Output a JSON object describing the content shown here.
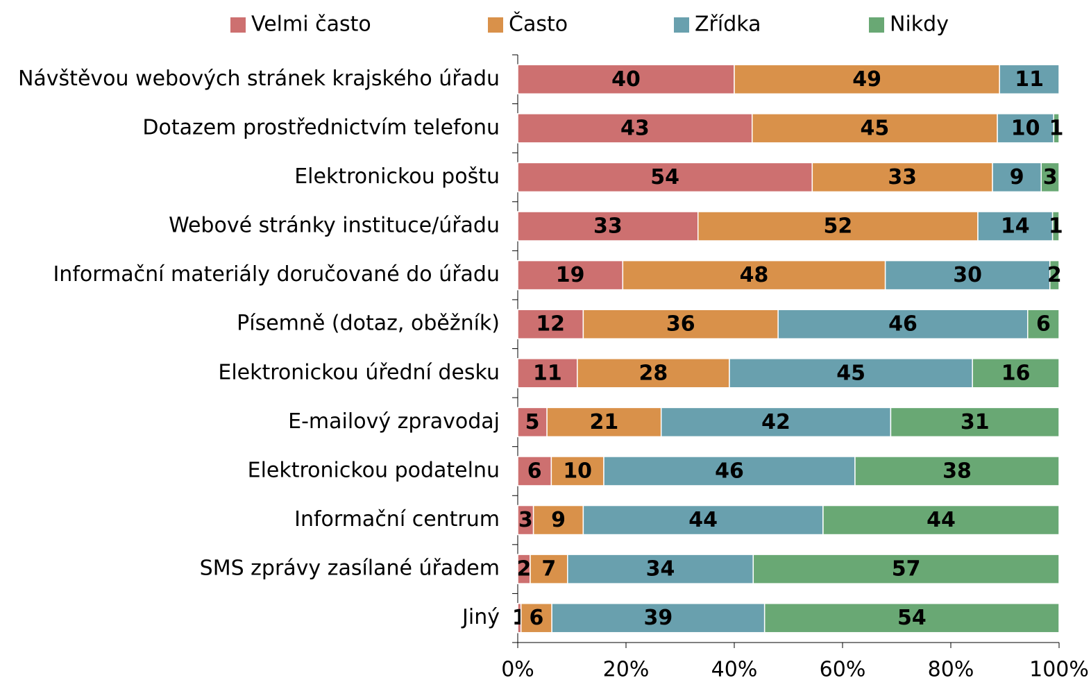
{
  "chart_data": {
    "type": "stacked_barh",
    "categories": [
      "Návštěvou webových stránek krajského úřadu",
      "Dotazem prostřednictvím telefonu",
      "Elektronickou poštu",
      "Webové stránky instituce/úřadu",
      "Informační materiály doručované do úřadu",
      "Písemně (dotaz, oběžník)",
      "Elektronickou úřední desku",
      "E-mailový zpravodaj",
      "Elektronickou podatelnu",
      "Informační centrum",
      "SMS zprávy zasílané úřadem",
      "Jiný"
    ],
    "series": [
      {
        "name": "Velmi často",
        "color": "#cd7070",
        "values": [
          40,
          43.3,
          54.4,
          33.3,
          19.4,
          12.1,
          11.0,
          5.4,
          6.2,
          2.9,
          2.3,
          0.6
        ],
        "value_labels": [
          "40",
          "43",
          "54",
          "33",
          "19",
          "12",
          "11",
          "5",
          "6",
          "3",
          "2",
          "1"
        ]
      },
      {
        "name": "Často",
        "color": "#d9914a",
        "values": [
          49,
          45.3,
          33.3,
          51.7,
          48.5,
          36.0,
          28.1,
          21.1,
          9.7,
          9.2,
          6.9,
          5.7
        ],
        "value_labels": [
          "49",
          "45",
          "33",
          "52",
          "48",
          "36",
          "28",
          "21",
          "10",
          "9",
          "7",
          "6"
        ]
      },
      {
        "name": "Zřídka",
        "color": "#69a0ae",
        "values": [
          11,
          10.4,
          9.0,
          13.8,
          30.4,
          46.1,
          44.9,
          42.4,
          46.4,
          44.3,
          34.3,
          39.3
        ],
        "value_labels": [
          "11",
          "10",
          "9",
          "14",
          "30",
          "46",
          "45",
          "42",
          "46",
          "44",
          "34",
          "39"
        ]
      },
      {
        "name": "Nikdy",
        "color": "#69a874",
        "values": [
          null,
          1.0,
          3.3,
          1.2,
          1.7,
          5.8,
          16.0,
          31.1,
          37.7,
          43.6,
          56.5,
          54.4
        ],
        "value_labels": [
          null,
          "1",
          "3",
          "1",
          "2",
          "6",
          "16",
          "31",
          "38",
          "44",
          "57",
          "54"
        ]
      }
    ],
    "xlim": [
      0,
      100
    ],
    "xticks": [
      {
        "value": 0,
        "label": "0%"
      },
      {
        "value": 20,
        "label": "20%"
      },
      {
        "value": 40,
        "label": "40%"
      },
      {
        "value": 60,
        "label": "60%"
      },
      {
        "value": 80,
        "label": "80%"
      },
      {
        "value": 100,
        "label": "100%"
      }
    ],
    "legend": "top"
  }
}
